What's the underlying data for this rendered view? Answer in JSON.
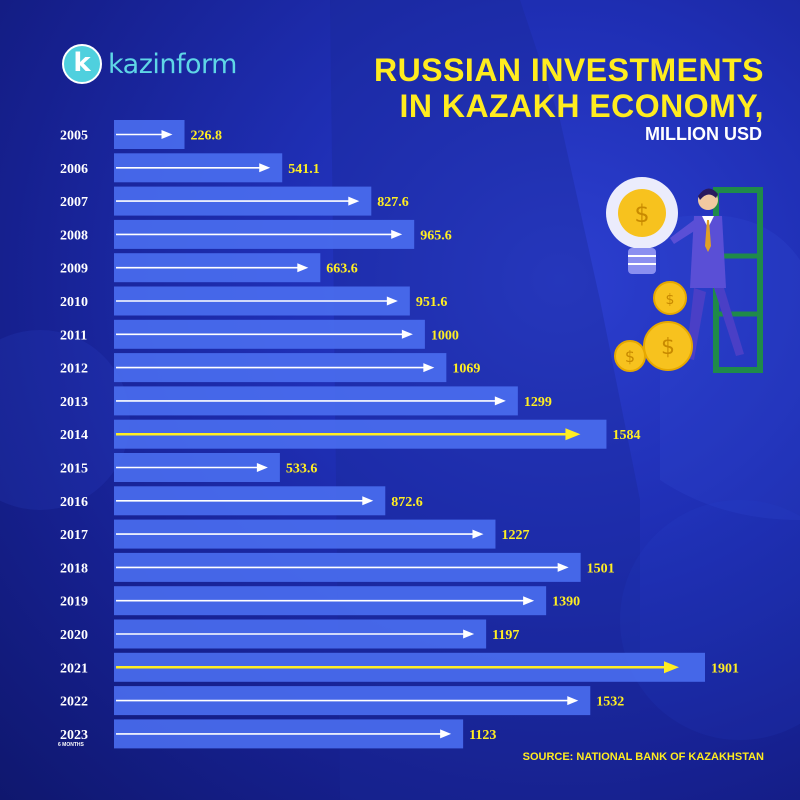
{
  "brand": {
    "logo_letter": "k",
    "name": "kazinform"
  },
  "header": {
    "title_line1": "RUSSIAN INVESTMENTS",
    "title_line2": "IN KAZAKH ECONOMY,",
    "subtitle": "MILLION USD"
  },
  "footer": {
    "source": "SOURCE: NATIONAL BANK OF KAZAKHSTAN",
    "note": "6 MONTHS"
  },
  "colors": {
    "bar": "#4a6ef0",
    "arrow": "#ffffff",
    "highlight_arrow": "#ffee22",
    "value_text": "#ffee22",
    "year_text": "#ffffff"
  },
  "chart_data": {
    "type": "bar",
    "orientation": "horizontal",
    "categories": [
      "2005",
      "2006",
      "2007",
      "2008",
      "2009",
      "2010",
      "2011",
      "2012",
      "2013",
      "2014",
      "2015",
      "2016",
      "2017",
      "2018",
      "2019",
      "2020",
      "2021",
      "2022",
      "2023"
    ],
    "values": [
      226.8,
      541.1,
      827.6,
      965.6,
      663.6,
      951.6,
      1000,
      1069,
      1299,
      1584,
      533.6,
      872.6,
      1227,
      1501,
      1390,
      1197,
      1901,
      1532,
      1123
    ],
    "value_labels": [
      "226.8",
      "541.1",
      "827.6",
      "965.6",
      "663.6",
      "951.6",
      "1000",
      "1069",
      "1299",
      "1584",
      "533.6",
      "872.6",
      "1227",
      "1501",
      "1390",
      "1197",
      "1901",
      "1532",
      "1123"
    ],
    "highlighted": [
      "2014",
      "2021"
    ],
    "xlim": [
      0,
      1901
    ]
  }
}
